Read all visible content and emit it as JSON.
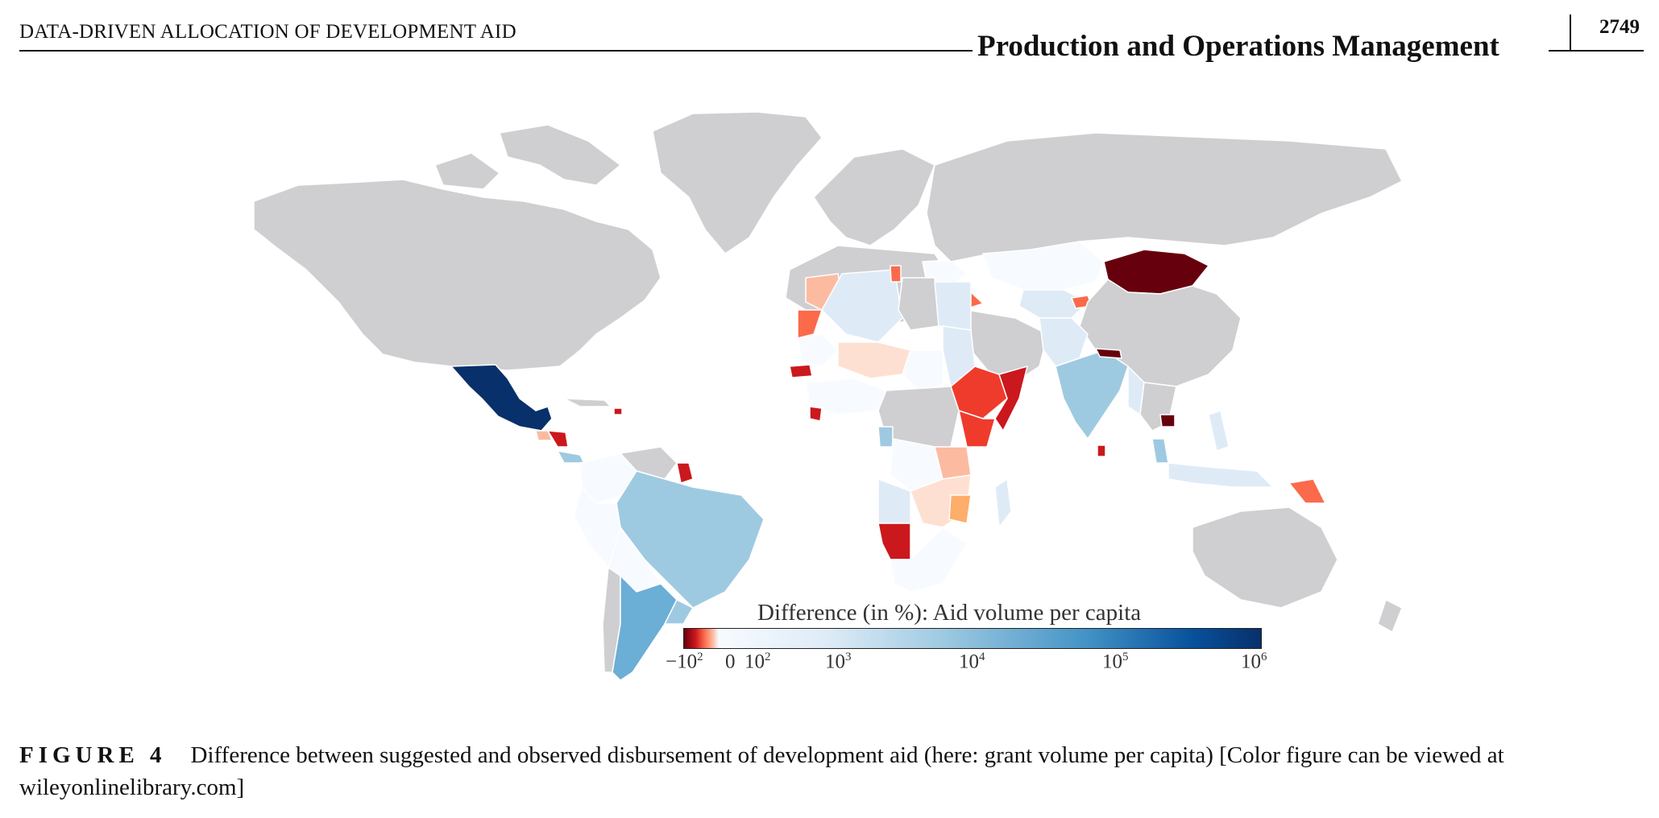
{
  "header": {
    "running_head": "DATA-DRIVEN ALLOCATION OF DEVELOPMENT AID",
    "journal": "Production and Operations Management",
    "page": "2749"
  },
  "map": {
    "colorbar": {
      "title": "Difference (in %): Aid volume per capita",
      "tick_labels": [
        {
          "base": "−10",
          "exp": "2"
        },
        {
          "base": "0",
          "exp": ""
        },
        {
          "base": "10",
          "exp": "2"
        },
        {
          "base": "10",
          "exp": "3"
        },
        {
          "base": "10",
          "exp": "4"
        },
        {
          "base": "10",
          "exp": "5"
        },
        {
          "base": "10",
          "exp": "6"
        }
      ],
      "colors": [
        "#67000d",
        "#cb181d",
        "#fb6a4a",
        "#fcbba1",
        "#f7fbff",
        "#deebf7",
        "#9ecae1",
        "#4292c6",
        "#08519c",
        "#08306b"
      ]
    },
    "colors": {
      "no_data": "#cfcfd1",
      "darkest_blue": "#08306b",
      "darkest_red": "#67000d"
    }
  },
  "caption": {
    "label": "FIGURE 4",
    "text": "Difference between suggested and observed disbursement of development aid (here: grant volume per capita) [Color figure can be viewed at wileyonlinelibrary.com]"
  }
}
